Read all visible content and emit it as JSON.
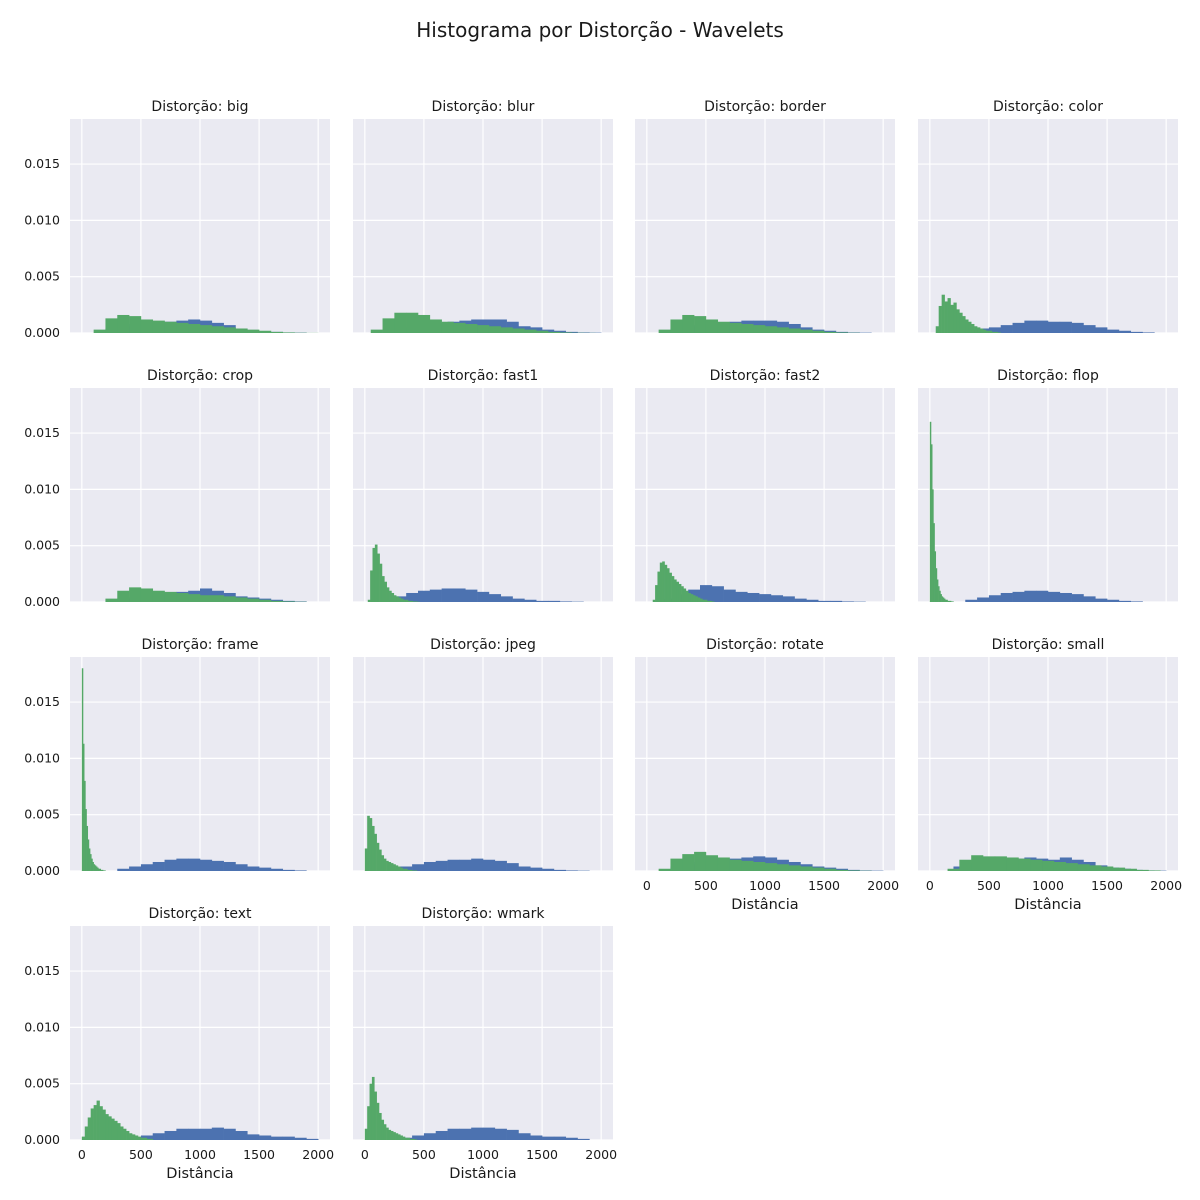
{
  "figure": {
    "title": "Histograma por Distorção - Wavelets",
    "xlabel": "Distância"
  },
  "colors": {
    "plot_bg": "#EAEAF2",
    "grid": "#FFFFFF",
    "series_blue": "#4C72B0",
    "series_green": "#55A868"
  },
  "chart_data": {
    "type": "bar",
    "layout": "grid 4x4, 14 panels, shared x and y axes",
    "xlim": [
      -100,
      2100
    ],
    "ylim": [
      0,
      0.019
    ],
    "x_ticks": [
      0,
      500,
      1000,
      1500,
      2000
    ],
    "y_ticks": [
      0.0,
      0.005,
      0.01,
      0.015
    ],
    "y_tick_labels": [
      "0.000",
      "0.005",
      "0.010",
      "0.015"
    ],
    "grid": true,
    "panels": [
      {
        "title": "Distorção: big",
        "blue": {
          "start": 200,
          "width": 100,
          "values": [
            0.0004,
            0.0006,
            0.0008,
            0.0009,
            0.0009,
            0.001,
            0.0011,
            0.0012,
            0.0011,
            0.0009,
            0.0007,
            0.0004,
            0.0002,
            0.0001,
            0.0001,
            5e-05,
            3e-05
          ]
        },
        "green": {
          "start": 100,
          "width": 100,
          "values": [
            0.0003,
            0.0013,
            0.0016,
            0.0015,
            0.0012,
            0.0011,
            0.001,
            0.0009,
            0.0008,
            0.0007,
            0.0006,
            0.0005,
            0.0004,
            0.0003,
            0.0002,
            0.0001,
            5e-05,
            2e-05,
            1e-05
          ]
        }
      },
      {
        "title": "Distorção: blur",
        "blue": {
          "start": 200,
          "width": 100,
          "values": [
            0.0003,
            0.0005,
            0.0007,
            0.0008,
            0.0009,
            0.001,
            0.0011,
            0.0012,
            0.0012,
            0.0012,
            0.001,
            0.0006,
            0.0005,
            0.0003,
            0.0002,
            0.0001,
            5e-05,
            3e-05
          ]
        },
        "green": {
          "start": 50,
          "width": 100,
          "values": [
            0.0003,
            0.0013,
            0.0018,
            0.0018,
            0.0016,
            0.0012,
            0.001,
            0.0009,
            0.0008,
            0.0007,
            0.0006,
            0.0005,
            0.0004,
            0.0003,
            0.0002,
            0.0001,
            5e-05,
            2e-05,
            1e-05
          ]
        }
      },
      {
        "title": "Distorção: border",
        "blue": {
          "start": 200,
          "width": 100,
          "values": [
            0.0004,
            0.0006,
            0.0007,
            0.0008,
            0.0009,
            0.001,
            0.0011,
            0.0011,
            0.0011,
            0.001,
            0.0008,
            0.0005,
            0.0003,
            0.0002,
            0.0001,
            5e-05,
            3e-05
          ]
        },
        "green": {
          "start": 100,
          "width": 100,
          "values": [
            0.0003,
            0.0012,
            0.0016,
            0.0015,
            0.0012,
            0.001,
            0.0009,
            0.0008,
            0.0007,
            0.0006,
            0.0005,
            0.0004,
            0.0003,
            0.0002,
            0.0001,
            5e-05,
            2e-05
          ]
        }
      },
      {
        "title": "Distorção: color",
        "blue": {
          "start": 200,
          "width": 100,
          "values": [
            0.0002,
            0.0003,
            0.0004,
            0.0005,
            0.0007,
            0.0009,
            0.0011,
            0.0011,
            0.001,
            0.001,
            0.0009,
            0.0007,
            0.0005,
            0.0003,
            0.0002,
            0.0001,
            5e-05
          ]
        },
        "green": {
          "start": 50,
          "width": 25,
          "values": [
            0.0006,
            0.0024,
            0.0034,
            0.0028,
            0.0031,
            0.0025,
            0.0027,
            0.0021,
            0.0018,
            0.0015,
            0.0012,
            0.001,
            0.0008,
            0.0006,
            0.0005,
            0.0004,
            0.0003,
            0.0002,
            0.0002,
            0.0001,
            0.0001,
            5e-05
          ]
        }
      },
      {
        "title": "Distorção: crop",
        "blue": {
          "start": 300,
          "width": 100,
          "values": [
            0.0003,
            0.0004,
            0.0006,
            0.0007,
            0.0008,
            0.0009,
            0.001,
            0.0012,
            0.001,
            0.0008,
            0.0005,
            0.0004,
            0.0003,
            0.0002,
            0.0001,
            5e-05
          ]
        },
        "green": {
          "start": 200,
          "width": 100,
          "values": [
            0.0003,
            0.001,
            0.0013,
            0.0012,
            0.001,
            0.0009,
            0.0008,
            0.0007,
            0.0006,
            0.0006,
            0.0005,
            0.0004,
            0.0003,
            0.0002,
            0.0001,
            5e-05,
            2e-05
          ]
        }
      },
      {
        "title": "Distorção: fast1",
        "blue": {
          "start": 150,
          "width": 100,
          "values": [
            0.0002,
            0.0005,
            0.0008,
            0.001,
            0.0011,
            0.0012,
            0.0012,
            0.0011,
            0.0009,
            0.0007,
            0.0005,
            0.0003,
            0.0002,
            0.0001,
            0.0001,
            5e-05,
            3e-05
          ]
        },
        "green": {
          "start": 25,
          "width": 20,
          "values": [
            0.0002,
            0.0028,
            0.0048,
            0.0051,
            0.0043,
            0.0034,
            0.0023,
            0.0018,
            0.0013,
            0.001,
            0.0008,
            0.0006,
            0.0005,
            0.0004,
            0.0003,
            0.0002,
            0.0002,
            0.0001,
            0.0001,
            5e-05,
            5e-05,
            2e-05
          ]
        }
      },
      {
        "title": "Distorção: fast2",
        "blue": {
          "start": 150,
          "width": 100,
          "values": [
            0.0003,
            0.0007,
            0.0011,
            0.0015,
            0.0014,
            0.0011,
            0.0009,
            0.0008,
            0.0007,
            0.0006,
            0.0005,
            0.0003,
            0.0002,
            0.0001,
            0.0001,
            5e-05,
            3e-05
          ]
        },
        "green": {
          "start": 50,
          "width": 20,
          "values": [
            0.0002,
            0.0015,
            0.0027,
            0.0035,
            0.0036,
            0.0033,
            0.003,
            0.0026,
            0.0023,
            0.002,
            0.0018,
            0.0016,
            0.0014,
            0.0012,
            0.001,
            0.0008,
            0.0007,
            0.0006,
            0.0005,
            0.0004,
            0.0003,
            0.0002,
            0.0002,
            0.0001,
            0.0001,
            5e-05
          ]
        }
      },
      {
        "title": "Distorção: flop",
        "blue": {
          "start": 300,
          "width": 100,
          "values": [
            0.0002,
            0.0004,
            0.0006,
            0.0008,
            0.0009,
            0.001,
            0.001,
            0.0009,
            0.0008,
            0.0007,
            0.0005,
            0.0003,
            0.0002,
            0.0001,
            5e-05
          ]
        },
        "green": {
          "start": 0,
          "width": 10,
          "values": [
            0.016,
            0.014,
            0.01,
            0.007,
            0.0045,
            0.003,
            0.002,
            0.0014,
            0.001,
            0.0007,
            0.0005,
            0.0004,
            0.0003,
            0.0002,
            0.0002,
            0.0001,
            0.0001,
            0.0001,
            5e-05,
            5e-05
          ]
        }
      },
      {
        "title": "Distorção: frame",
        "blue": {
          "start": 300,
          "width": 100,
          "values": [
            0.0002,
            0.0004,
            0.0006,
            0.0008,
            0.001,
            0.0011,
            0.0011,
            0.001,
            0.0009,
            0.0008,
            0.0006,
            0.0004,
            0.0003,
            0.0002,
            0.0001,
            5e-05
          ]
        },
        "green": {
          "start": 0,
          "width": 10,
          "values": [
            0.018,
            0.0113,
            0.008,
            0.0055,
            0.004,
            0.0028,
            0.002,
            0.0015,
            0.0011,
            0.0008,
            0.0006,
            0.0005,
            0.0004,
            0.0003,
            0.0002,
            0.0002,
            0.0001,
            0.0001,
            5e-05,
            5e-05
          ]
        }
      },
      {
        "title": "Distorção: jpeg",
        "blue": {
          "start": 200,
          "width": 100,
          "values": [
            0.0002,
            0.0004,
            0.0006,
            0.0008,
            0.0009,
            0.001,
            0.001,
            0.0011,
            0.001,
            0.0009,
            0.0007,
            0.0004,
            0.0003,
            0.0002,
            0.0001,
            5e-05,
            3e-05
          ]
        },
        "green": {
          "start": 0,
          "width": 20,
          "values": [
            0.002,
            0.0049,
            0.0047,
            0.004,
            0.0033,
            0.0025,
            0.0019,
            0.0014,
            0.0011,
            0.0009,
            0.0008,
            0.0007,
            0.0006,
            0.0005,
            0.0004,
            0.0003,
            0.0002,
            0.0002,
            0.0001,
            0.0001,
            5e-05,
            5e-05
          ]
        }
      },
      {
        "title": "Distorção: rotate",
        "blue": {
          "start": 200,
          "width": 100,
          "values": [
            0.0004,
            0.0006,
            0.0008,
            0.0009,
            0.001,
            0.0011,
            0.0012,
            0.0013,
            0.0012,
            0.001,
            0.0008,
            0.0006,
            0.0004,
            0.0003,
            0.0002,
            0.0001,
            5e-05,
            3e-05
          ]
        },
        "green": {
          "start": 100,
          "width": 100,
          "values": [
            0.0002,
            0.0011,
            0.0015,
            0.0017,
            0.0014,
            0.0012,
            0.001,
            0.0009,
            0.0008,
            0.0007,
            0.0006,
            0.0005,
            0.0004,
            0.0003,
            0.0002,
            0.0001,
            5e-05,
            2e-05
          ]
        }
      },
      {
        "title": "Distorção: small",
        "blue": {
          "start": 200,
          "width": 100,
          "values": [
            0.0004,
            0.0007,
            0.0009,
            0.001,
            0.0011,
            0.0011,
            0.0012,
            0.0011,
            0.001,
            0.0012,
            0.001,
            0.0008,
            0.0005,
            0.0003,
            0.0002,
            0.0001,
            5e-05,
            3e-05
          ]
        },
        "green": {
          "start": 150,
          "width": 100,
          "values": [
            0.0002,
            0.001,
            0.0014,
            0.0013,
            0.0013,
            0.0012,
            0.0011,
            0.001,
            0.0009,
            0.0008,
            0.0007,
            0.0006,
            0.0005,
            0.0004,
            0.0003,
            0.0002,
            0.0001,
            5e-05
          ]
        }
      },
      {
        "title": "Distorção: text",
        "blue": {
          "start": 400,
          "width": 100,
          "values": [
            0.0002,
            0.0004,
            0.0006,
            0.0008,
            0.001,
            0.001,
            0.001,
            0.0011,
            0.001,
            0.0008,
            0.0005,
            0.0004,
            0.0003,
            0.0003,
            0.0002,
            0.0001
          ]
        },
        "green": {
          "start": 0,
          "width": 25,
          "values": [
            0.0003,
            0.0012,
            0.002,
            0.0028,
            0.0031,
            0.0035,
            0.003,
            0.0027,
            0.0023,
            0.0021,
            0.0019,
            0.0017,
            0.0015,
            0.0012,
            0.001,
            0.0008,
            0.0006,
            0.0005,
            0.0004,
            0.0003,
            0.0002,
            0.0002,
            0.0001,
            0.0001
          ]
        }
      },
      {
        "title": "Distorção: wmark",
        "blue": {
          "start": 300,
          "width": 100,
          "values": [
            0.0002,
            0.0004,
            0.0006,
            0.0008,
            0.001,
            0.001,
            0.0011,
            0.0011,
            0.001,
            0.0009,
            0.0006,
            0.0004,
            0.0003,
            0.0003,
            0.0002,
            0.0001
          ]
        },
        "green": {
          "start": 0,
          "width": 20,
          "values": [
            0.001,
            0.003,
            0.005,
            0.0056,
            0.0043,
            0.0033,
            0.0024,
            0.0018,
            0.0014,
            0.0011,
            0.0009,
            0.0008,
            0.0007,
            0.0006,
            0.0005,
            0.0004,
            0.0003,
            0.0002,
            0.0002,
            0.0001,
            0.0001,
            5e-05
          ]
        }
      }
    ]
  }
}
